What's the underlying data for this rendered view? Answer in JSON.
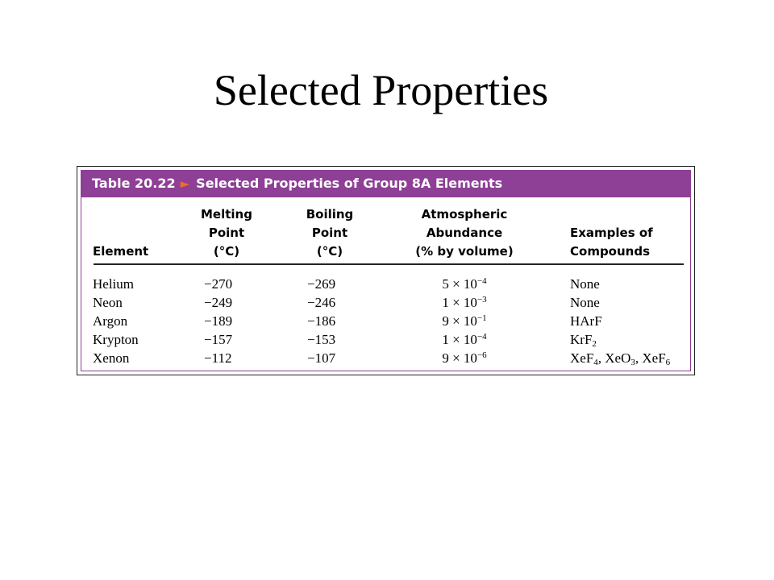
{
  "slide": {
    "title": "Selected Properties"
  },
  "table": {
    "number": "Table 20.22",
    "caption": "Selected Properties of Group 8A Elements",
    "headers": {
      "element": [
        "Element"
      ],
      "melting": [
        "Melting",
        "Point",
        "(°C)"
      ],
      "boiling": [
        "Boiling",
        "Point",
        "(°C)"
      ],
      "abundance": [
        "Atmospheric",
        "Abundance",
        "(% by volume)"
      ],
      "compounds": [
        "Examples of",
        "Compounds"
      ]
    },
    "rows": [
      {
        "element": "Helium",
        "melting": "−270",
        "boiling": "−269",
        "abundance_mantissa": "5 × 10",
        "abundance_exp": "−4",
        "compounds": [
          [
            "None",
            ""
          ]
        ]
      },
      {
        "element": "Neon",
        "melting": "−249",
        "boiling": "−246",
        "abundance_mantissa": "1 × 10",
        "abundance_exp": "−3",
        "compounds": [
          [
            "None",
            ""
          ]
        ]
      },
      {
        "element": "Argon",
        "melting": "−189",
        "boiling": "−186",
        "abundance_mantissa": "9 × 10",
        "abundance_exp": "−1",
        "compounds": [
          [
            "HArF",
            ""
          ]
        ]
      },
      {
        "element": "Krypton",
        "melting": "−157",
        "boiling": "−153",
        "abundance_mantissa": "1 × 10",
        "abundance_exp": "−4",
        "compounds": [
          [
            "KrF",
            "2"
          ]
        ]
      },
      {
        "element": "Xenon",
        "melting": "−112",
        "boiling": "−107",
        "abundance_mantissa": "9 × 10",
        "abundance_exp": "−6",
        "compounds": [
          [
            "XeF",
            "4"
          ],
          [
            "XeO",
            "3"
          ],
          [
            "XeF",
            "6"
          ]
        ]
      }
    ]
  },
  "colors": {
    "caption_bar": "#8e3f96",
    "caption_arrow": "#f46a2c"
  }
}
